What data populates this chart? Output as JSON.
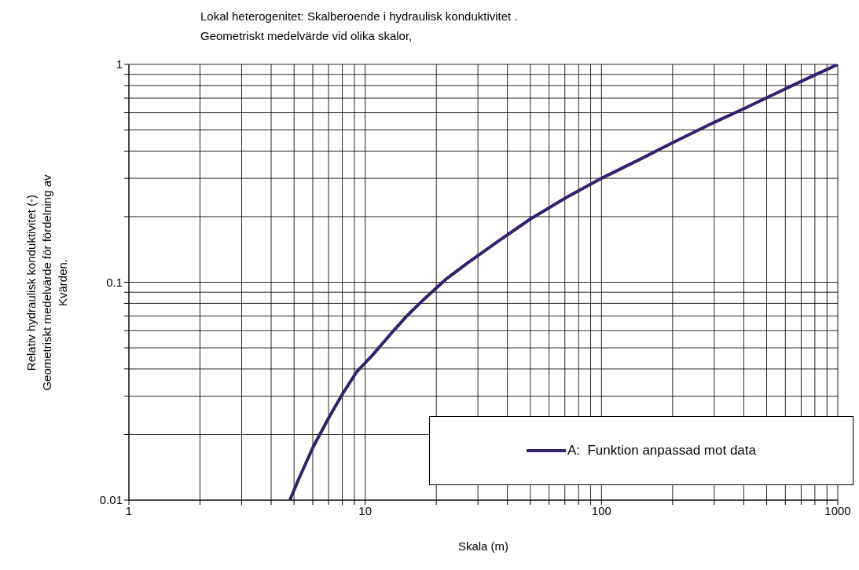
{
  "chart_data": {
    "type": "line",
    "title": "Lokal heterogenitet: Skalberoende i hydraulisk konduktivitet .\nGeometriskt medelvärde vid olika skalor,",
    "xlabel": "Skala (m)",
    "ylabel": "Relativ hydraulisk konduktivitet (-)\nGeometriskt medelvärde för fördelning av\nKvärden.",
    "log": "xy",
    "grid": true,
    "legend": "bottom right",
    "marker": "none",
    "line_style": "solid",
    "xlim": [
      1,
      1000
    ],
    "ylim": [
      0.01,
      1
    ],
    "xticks": [
      1,
      {
        "value": 2,
        "label": null
      },
      {
        "value": 3,
        "label": null
      },
      {
        "value": 4,
        "label": null
      },
      {
        "value": 5,
        "label": null
      },
      {
        "value": 6,
        "label": null
      },
      {
        "value": 7,
        "label": null
      },
      {
        "value": 8,
        "label": null
      },
      {
        "value": 9,
        "label": null
      },
      10,
      {
        "value": 20,
        "label": null
      },
      {
        "value": 30,
        "label": null
      },
      {
        "value": 40,
        "label": null
      },
      {
        "value": 50,
        "label": null
      },
      {
        "value": 60,
        "label": null
      },
      {
        "value": 70,
        "label": null
      },
      {
        "value": 80,
        "label": null
      },
      {
        "value": 90,
        "label": null
      },
      100,
      {
        "value": 200,
        "label": null
      },
      {
        "value": 300,
        "label": null
      },
      {
        "value": 400,
        "label": null
      },
      {
        "value": 500,
        "label": null
      },
      {
        "value": 600,
        "label": null
      },
      {
        "value": 700,
        "label": null
      },
      {
        "value": 800,
        "label": null
      },
      {
        "value": 900,
        "label": null
      },
      1000
    ],
    "yticks": [
      0.01,
      {
        "value": 0.02,
        "label": null
      },
      {
        "value": 0.03,
        "label": null
      },
      {
        "value": 0.04,
        "label": null
      },
      {
        "value": 0.05,
        "label": null
      },
      {
        "value": 0.06,
        "label": null
      },
      {
        "value": 0.07,
        "label": null
      },
      {
        "value": 0.08,
        "label": null
      },
      {
        "value": 0.09,
        "label": null
      },
      0.1,
      {
        "value": 0.2,
        "label": null
      },
      {
        "value": 0.3,
        "label": null
      },
      {
        "value": 0.4,
        "label": null
      },
      {
        "value": 0.5,
        "label": null
      },
      {
        "value": 0.6,
        "label": null
      },
      {
        "value": 0.7,
        "label": null
      },
      {
        "value": 0.8,
        "label": null
      },
      {
        "value": 0.9,
        "label": null
      },
      1
    ],
    "series": [
      {
        "name": "A:  Funktion anpassad mot data",
        "color": "#35206b",
        "x": [
          4.8,
          5.2,
          6,
          7,
          8,
          9.2,
          10.7,
          13.2,
          15,
          17.4,
          21.9,
          27.5,
          36.8,
          50,
          71,
          100,
          145,
          200,
          300,
          400,
          500,
          700,
          1000
        ],
        "values": [
          0.01,
          0.0123,
          0.0174,
          0.0238,
          0.0306,
          0.0388,
          0.0461,
          0.06,
          0.07,
          0.082,
          0.103,
          0.124,
          0.155,
          0.195,
          0.245,
          0.3,
          0.366,
          0.437,
          0.542,
          0.626,
          0.703,
          0.836,
          1
        ]
      }
    ]
  }
}
